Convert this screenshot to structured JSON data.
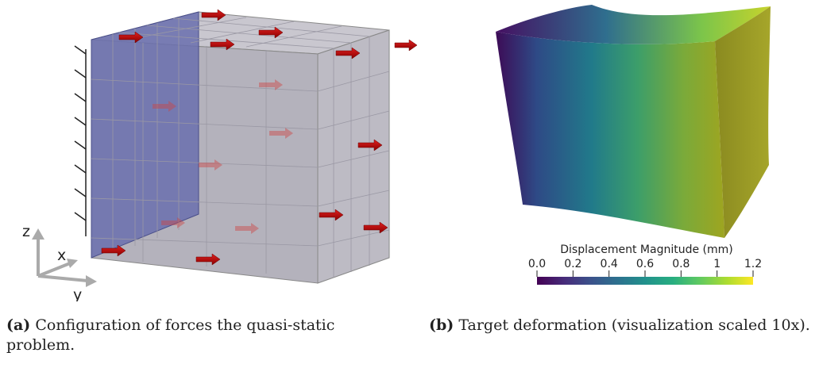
{
  "figure_a": {
    "axis_labels": {
      "z": "z",
      "x": "x",
      "y": "y"
    },
    "caption_label": "(a)",
    "caption_text": "Configuration of forces the quasi-static problem."
  },
  "figure_b": {
    "colorbar": {
      "title": "Displacement Magnitude (mm)",
      "ticks": [
        "0.0",
        "0.2",
        "0.4",
        "0.6",
        "0.8",
        "1",
        "1.2"
      ],
      "range": [
        0.0,
        1.2
      ],
      "colormap": "viridis"
    },
    "caption_label": "(b)",
    "caption_text": "Target deformation (visualization scaled 10x)."
  },
  "colors": {
    "force_arrow": "#c00000",
    "fixed_face": "#6a6fae",
    "cube_face": "#b8b6c0"
  }
}
